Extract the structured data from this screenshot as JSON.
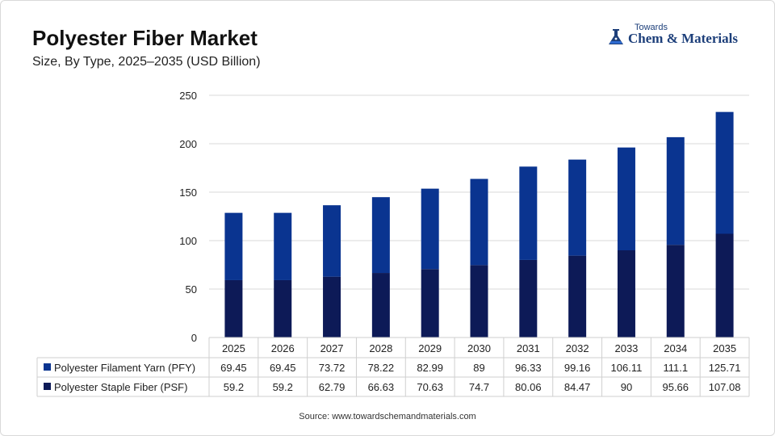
{
  "header": {
    "title": "Polyester Fiber Market",
    "subtitle": "Size, By Type, 2025–2035 (USD Billion)"
  },
  "logo": {
    "small": "Towards",
    "main": "Chem & Materials",
    "icon": "flask-icon"
  },
  "source": "Source: www.towardschemandmaterials.com",
  "colors": {
    "pfy": "#0a3490",
    "psf": "#0d1a57",
    "grid": "#d9d9d9"
  },
  "chart_data": {
    "type": "bar",
    "stacked": true,
    "title": "Polyester Fiber Market",
    "subtitle": "Size, By Type, 2025–2035 (USD Billion)",
    "categories": [
      "2025",
      "2026",
      "2027",
      "2028",
      "2029",
      "2030",
      "2031",
      "2032",
      "2033",
      "2034",
      "2035"
    ],
    "series": [
      {
        "name": "Polyester Filament Yarn (PFY)",
        "values": [
          69.45,
          69.45,
          73.72,
          78.22,
          82.99,
          89,
          96.33,
          99.16,
          106.11,
          111.1,
          125.71
        ]
      },
      {
        "name": "Polyester Staple Fiber (PSF)",
        "values": [
          59.2,
          59.2,
          62.79,
          66.63,
          70.63,
          74.7,
          80.06,
          84.47,
          90,
          95.66,
          107.08
        ]
      }
    ],
    "ylim": [
      0,
      250
    ],
    "yticks": [
      0,
      50,
      100,
      150,
      200,
      250
    ],
    "grid": true,
    "legend": "data-table"
  }
}
